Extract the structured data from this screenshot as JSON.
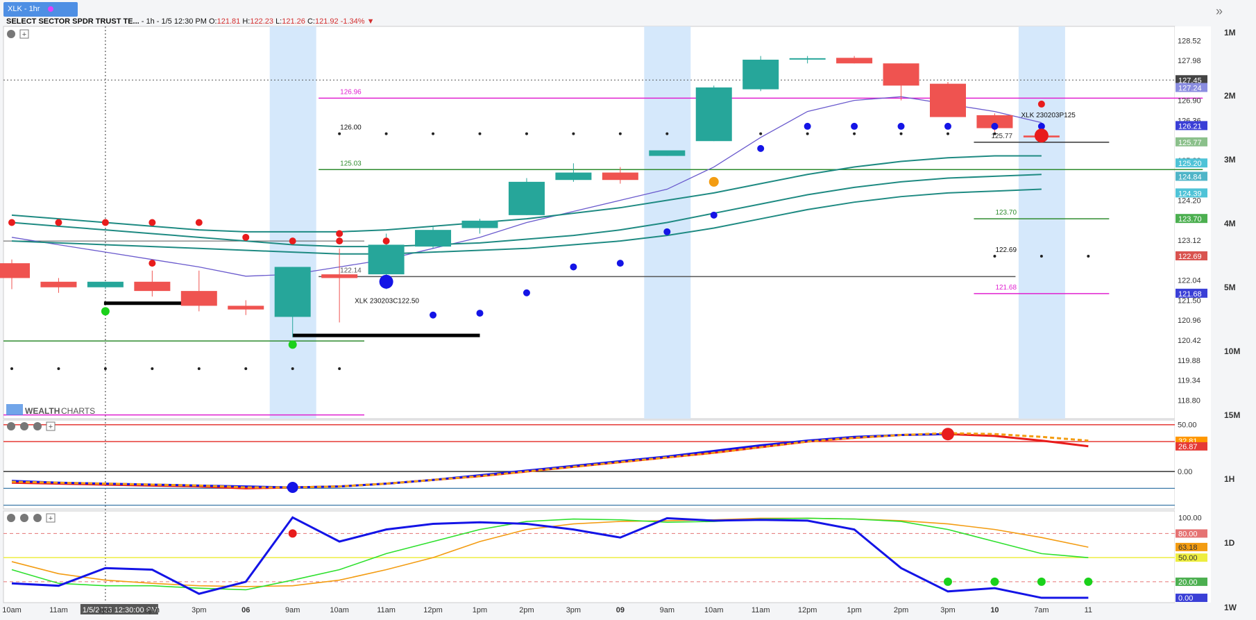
{
  "tab": {
    "label": "XLK - 1hr",
    "dot_color": "#e040fb"
  },
  "header": {
    "symbol": "SELECT SECTOR SPDR TRUST TE...",
    "interval_date": " - 1h - 1/5 12:30 PM",
    "o_label": "O:",
    "o_value": "121.81",
    "h_label": "H:",
    "h_value": "122.23",
    "l_label": "L:",
    "l_value": "121.26",
    "c_label": "C:",
    "c_value": "121.92",
    "change": "-1.34%",
    "down_arrow": "▼"
  },
  "expand_icon": "»",
  "timeframes": [
    "1M",
    "2M",
    "3M",
    "4M",
    "5M",
    "10M",
    "15M",
    "1H",
    "1D",
    "1W"
  ],
  "logo": {
    "text_wealth": "WEALTH",
    "text_charts": "CHARTS"
  },
  "chart_data": {
    "type": "candlestick",
    "symbol": "XLK",
    "interval": "1h",
    "x_ticks": [
      "10am",
      "11am",
      "1/5/2023 12:30:00 PM",
      "1pm",
      "2pm",
      "3pm",
      "06",
      "9am",
      "10am",
      "11am",
      "12pm",
      "1pm",
      "2pm",
      "3pm",
      "09",
      "9am",
      "10am",
      "11am",
      "12pm",
      "1pm",
      "2pm",
      "3pm",
      "10",
      "7am",
      "11"
    ],
    "price_ticks": [
      "128.52",
      "127.98",
      "126.90",
      "126.36",
      "125.28",
      "124.20",
      "123.12",
      "122.04",
      "121.50",
      "120.96",
      "120.42",
      "119.88",
      "119.34",
      "118.80"
    ],
    "price_range": [
      118.3,
      128.9
    ],
    "candles": [
      {
        "o": 122.5,
        "h": 122.6,
        "l": 121.8,
        "c": 122.1
      },
      {
        "o": 122.0,
        "h": 122.1,
        "l": 121.7,
        "c": 121.85
      },
      {
        "o": 121.85,
        "h": 122.0,
        "l": 121.8,
        "c": 122.0
      },
      {
        "o": 122.0,
        "h": 122.3,
        "l": 121.6,
        "c": 121.75
      },
      {
        "o": 121.75,
        "h": 122.3,
        "l": 121.2,
        "c": 121.35
      },
      {
        "o": 121.35,
        "h": 121.5,
        "l": 121.1,
        "c": 121.25
      },
      {
        "o": 121.05,
        "h": 122.4,
        "l": 120.5,
        "c": 122.4
      },
      {
        "o": 122.2,
        "h": 122.9,
        "l": 120.9,
        "c": 122.1
      },
      {
        "o": 122.2,
        "h": 123.3,
        "l": 121.8,
        "c": 123.0
      },
      {
        "o": 122.95,
        "h": 123.5,
        "l": 122.9,
        "c": 123.4
      },
      {
        "o": 123.45,
        "h": 123.7,
        "l": 123.3,
        "c": 123.65
      },
      {
        "o": 123.8,
        "h": 124.8,
        "l": 123.8,
        "c": 124.7
      },
      {
        "o": 124.75,
        "h": 125.2,
        "l": 124.7,
        "c": 124.95
      },
      {
        "o": 124.95,
        "h": 125.1,
        "l": 124.65,
        "c": 124.75
      },
      {
        "o": 125.4,
        "h": 125.5,
        "l": 125.4,
        "c": 125.55
      },
      {
        "o": 125.8,
        "h": 127.3,
        "l": 125.8,
        "c": 127.25
      },
      {
        "o": 127.2,
        "h": 128.1,
        "l": 127.15,
        "c": 128.0
      },
      {
        "o": 128.02,
        "h": 128.1,
        "l": 127.9,
        "c": 128.04
      },
      {
        "o": 128.05,
        "h": 128.1,
        "l": 127.9,
        "c": 127.9
      },
      {
        "o": 127.9,
        "h": 127.9,
        "l": 126.9,
        "c": 127.3
      },
      {
        "o": 127.35,
        "h": 127.4,
        "l": 126.5,
        "c": 126.45
      },
      {
        "o": 126.5,
        "h": 126.55,
        "l": 126.05,
        "c": 126.15
      },
      {
        "o": 125.95,
        "h": 126.05,
        "l": 125.9,
        "c": 125.9
      }
    ],
    "moving_averages": {
      "purple": [
        123.2,
        123.0,
        122.8,
        122.6,
        122.4,
        122.15,
        122.2,
        122.4,
        122.6,
        122.9,
        123.2,
        123.6,
        123.9,
        124.2,
        124.5,
        125.1,
        125.9,
        126.6,
        126.9,
        127.0,
        126.8,
        126.6,
        126.3
      ],
      "teal_fast": [
        123.8,
        123.7,
        123.6,
        123.5,
        123.4,
        123.35,
        123.35,
        123.35,
        123.4,
        123.5,
        123.6,
        123.7,
        123.85,
        124.0,
        124.2,
        124.4,
        124.65,
        124.9,
        125.1,
        125.25,
        125.35,
        125.4,
        125.4
      ],
      "teal_mid": [
        123.6,
        123.5,
        123.4,
        123.3,
        123.2,
        123.1,
        123.0,
        122.95,
        122.95,
        123.0,
        123.05,
        123.15,
        123.25,
        123.4,
        123.6,
        123.85,
        124.1,
        124.35,
        124.55,
        124.7,
        124.8,
        124.85,
        124.9
      ],
      "teal_slow": [
        123.1,
        123.05,
        123.0,
        122.95,
        122.9,
        122.85,
        122.8,
        122.75,
        122.75,
        122.8,
        122.85,
        122.9,
        123.0,
        123.1,
        123.25,
        123.45,
        123.7,
        123.95,
        124.15,
        124.3,
        124.4,
        124.45,
        124.5
      ]
    },
    "red_dots": [
      [
        0,
        123.6
      ],
      [
        1,
        123.6
      ],
      [
        2,
        123.6
      ],
      [
        3,
        123.6
      ],
      [
        4,
        123.6
      ],
      [
        5,
        123.2
      ],
      [
        6,
        123.1
      ],
      [
        7,
        123.3
      ],
      [
        7,
        123.1
      ],
      [
        8,
        123.1
      ],
      [
        3,
        122.5
      ],
      [
        22,
        126.8
      ]
    ],
    "blue_dots": [
      [
        8,
        122.0
      ],
      [
        9,
        121.1
      ],
      [
        10,
        121.15
      ],
      [
        11,
        121.7
      ],
      [
        12,
        122.4
      ],
      [
        13,
        122.5
      ],
      [
        14,
        123.35
      ],
      [
        15,
        123.8
      ],
      [
        16,
        125.6
      ],
      [
        17,
        126.2
      ],
      [
        18,
        126.2
      ],
      [
        19,
        126.2
      ],
      [
        20,
        126.2
      ],
      [
        21,
        126.2
      ],
      [
        22,
        126.2
      ]
    ],
    "big_red_dot": [
      22,
      125.95
    ],
    "orange_dot": [
      15,
      124.7
    ],
    "green_dots": [
      [
        2,
        121.2
      ],
      [
        6,
        120.3
      ]
    ],
    "black_dots_upper": [
      7,
      8,
      9,
      10,
      11,
      12,
      13,
      14,
      15,
      16,
      17,
      18,
      19,
      20,
      21
    ],
    "black_dots_lower": [
      0,
      1,
      2,
      3,
      4,
      5,
      6,
      7
    ],
    "black_dots_right": [
      21,
      22,
      23
    ],
    "levels": [
      {
        "label": "126.96",
        "value": 126.96,
        "color": "#e020d0",
        "from": 7,
        "to": 25
      },
      {
        "label": "126.00",
        "value": 126.0,
        "color": "#111",
        "from": 7,
        "to": 7
      },
      {
        "label": "125.03",
        "value": 125.03,
        "color": "#2e8b2e",
        "from": 7,
        "to": 25
      },
      {
        "label": "122.14",
        "value": 122.14,
        "color": "#555",
        "from": 7,
        "to": 21
      },
      {
        "label": "125.77",
        "value": 125.77,
        "color": "#333",
        "from": 21,
        "to": 23
      },
      {
        "label": "123.70",
        "value": 123.7,
        "color": "#2e8b2e",
        "from": 21,
        "to": 23
      },
      {
        "label": "122.69",
        "value": 122.69,
        "color": "#111",
        "from": 21,
        "to": 21
      },
      {
        "label": "121.68",
        "value": 121.68,
        "color": "#e020d0",
        "from": 21,
        "to": 23
      }
    ],
    "annotations": [
      "XLK 230203C122.50",
      "XLK 230203P125"
    ],
    "price_badges": [
      {
        "label": "127.45",
        "color": "#444"
      },
      {
        "label": "127.24",
        "color": "#8a8de0"
      },
      {
        "label": "126.21",
        "color": "#3a3fd6"
      },
      {
        "label": "125.77",
        "color": "#8bc08b"
      },
      {
        "label": "125.20",
        "color": "#4fc3d7"
      },
      {
        "label": "124.84",
        "color": "#4fb5c8"
      },
      {
        "label": "124.39",
        "color": "#4fc3d7"
      },
      {
        "label": "123.70",
        "color": "#4caf50"
      },
      {
        "label": "122.69",
        "color": "#d9534f"
      },
      {
        "label": "121.68",
        "color": "#3a3fd6"
      }
    ],
    "osc1": {
      "ticks": [
        "50.00",
        "0.00"
      ],
      "badges": [
        {
          "label": "32.81",
          "color": "#ff9800"
        },
        {
          "label": "26.87",
          "color": "#e53935"
        }
      ],
      "red_line": [
        -12,
        -13,
        -14,
        -15,
        -16,
        -18,
        -17,
        -16,
        -13,
        -9,
        -5,
        0,
        5,
        10,
        15,
        20,
        26,
        32,
        36,
        39,
        40,
        38,
        33,
        27
      ],
      "blue_line": [
        -10,
        -12,
        -13,
        -14,
        -15,
        -16,
        -17,
        -16,
        -13,
        -9,
        -4,
        1,
        6,
        11,
        16,
        22,
        28,
        33,
        37,
        39,
        40,
        null,
        null,
        null
      ],
      "orange_line": [
        -11,
        -12,
        -13,
        -14,
        -15,
        -17,
        -17,
        -16,
        -13,
        -9,
        -5,
        0,
        5,
        10,
        15,
        20,
        26,
        32,
        36,
        39,
        41,
        40,
        37,
        33
      ]
    },
    "osc2": {
      "ticks": [
        "100.00",
        "80.00",
        "63.18",
        "50.00",
        "20.00",
        "0.00"
      ],
      "blue_line": [
        18,
        15,
        37,
        35,
        5,
        20,
        100,
        70,
        85,
        92,
        94,
        92,
        85,
        75,
        99,
        96,
        97,
        96,
        85,
        37,
        8,
        12,
        0,
        0
      ],
      "green_line": [
        35,
        18,
        15,
        15,
        12,
        10,
        22,
        35,
        55,
        70,
        85,
        95,
        98,
        97,
        94,
        95,
        98,
        99,
        98,
        95,
        85,
        70,
        55,
        50
      ],
      "orange_line": [
        45,
        30,
        22,
        18,
        15,
        14,
        15,
        22,
        35,
        50,
        70,
        85,
        92,
        95,
        96,
        97,
        99,
        99,
        98,
        96,
        92,
        85,
        75,
        63
      ]
    }
  }
}
